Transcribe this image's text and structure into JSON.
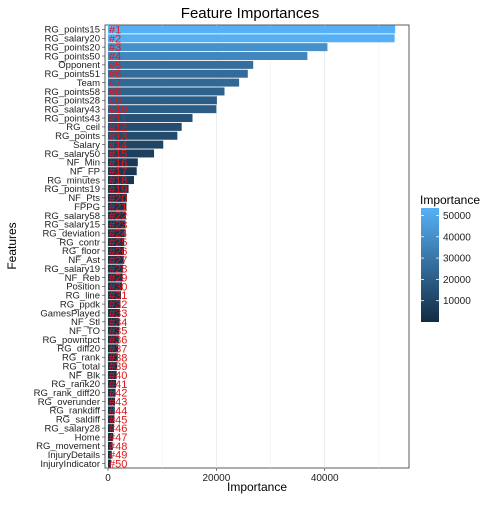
{
  "chart_data": {
    "type": "bar",
    "orientation": "horizontal",
    "title": "Feature Importances",
    "xlabel": "Importance",
    "ylabel": "Features",
    "xlim": [
      0,
      55000
    ],
    "xticks": [
      0,
      20000,
      40000
    ],
    "xtick_labels": [
      "0",
      "20000",
      "40000"
    ],
    "grid": true,
    "legend": {
      "title": "Importance",
      "position": "right",
      "ticks": [
        10000,
        20000,
        30000,
        40000,
        50000
      ],
      "tick_labels": [
        "10000",
        "20000",
        "30000",
        "40000",
        "50000"
      ],
      "low_color": "#132b43",
      "high_color": "#56b1f7",
      "range": [
        0,
        53500
      ]
    },
    "categories": [
      "RG_points15",
      "RG_salary20",
      "RG_points20",
      "RG_points50",
      "Opponent",
      "RG_points51",
      "Team",
      "RG_points58",
      "RG_points28",
      "RG_salary43",
      "RG_points43",
      "RG_ceil",
      "RG_points",
      "Salary",
      "RG_salary50",
      "NF_Min",
      "NF_FP",
      "RG_minutes",
      "RG_points19",
      "NF_Pts",
      "FPPG",
      "RG_salary58",
      "RG_salary15",
      "RG_deviation",
      "RG_contr",
      "RG_floor",
      "NF_Ast",
      "RG_salary19",
      "NF_Reb",
      "Position",
      "RG_line",
      "RG_ppdk",
      "GamesPlayed",
      "NF_Stl",
      "NF_TO",
      "RG_powntpct",
      "RG_diff20",
      "RG_rank",
      "RG_total",
      "NF_Blk",
      "RG_rank20",
      "RG_rank_diff20",
      "RG_overunder",
      "RG_rankdiff",
      "RG_saldiff",
      "RG_salary28",
      "Home",
      "RG_movement",
      "InjuryDetails",
      "InjuryIndicator"
    ],
    "values": [
      53000,
      52900,
      40500,
      36800,
      26800,
      25800,
      24200,
      21500,
      20100,
      20000,
      15600,
      13600,
      12800,
      10200,
      8500,
      5500,
      5300,
      4800,
      3800,
      3500,
      3400,
      3300,
      3200,
      3100,
      3000,
      2950,
      2900,
      2800,
      2700,
      2600,
      2400,
      2300,
      2200,
      2100,
      2050,
      2000,
      1900,
      1800,
      1700,
      1600,
      1500,
      1400,
      1300,
      1250,
      1200,
      1100,
      950,
      850,
      700,
      550
    ],
    "rank_labels": [
      "#1",
      "#2",
      "#3",
      "#4",
      "#5",
      "#6",
      "#7",
      "#8",
      "#9",
      "#10",
      "#11",
      "#12",
      "#13",
      "#14",
      "#15",
      "#16",
      "#17",
      "#18",
      "#19",
      "#20",
      "#21",
      "#22",
      "#23",
      "#24",
      "#25",
      "#26",
      "#27",
      "#28",
      "#29",
      "#30",
      "#31",
      "#32",
      "#33",
      "#34",
      "#35",
      "#36",
      "#37",
      "#38",
      "#39",
      "#40",
      "#41",
      "#42",
      "#43",
      "#44",
      "#45",
      "#46",
      "#47",
      "#48",
      "#49",
      "#50"
    ]
  }
}
